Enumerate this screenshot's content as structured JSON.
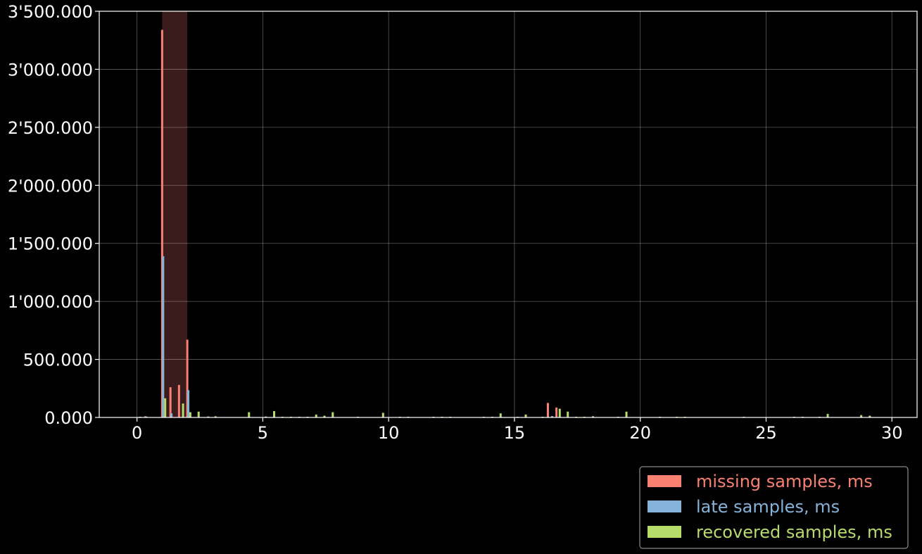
{
  "chart_data": {
    "type": "bar",
    "title": "",
    "xlabel": "",
    "ylabel": "",
    "xlim": [
      -1.5,
      31
    ],
    "ylim": [
      0,
      3500
    ],
    "x_ticks": [
      0,
      5,
      10,
      15,
      20,
      25,
      30
    ],
    "x_tick_labels": [
      "0",
      "5",
      "10",
      "15",
      "20",
      "25",
      "30"
    ],
    "y_ticks": [
      0,
      500,
      1000,
      1500,
      2000,
      2500,
      3000,
      3500
    ],
    "y_tick_labels": [
      "0.000",
      "500.000",
      "1'000.000",
      "1'500.000",
      "2'000.000",
      "2'500.000",
      "3'000.000",
      "3'500.000"
    ],
    "grid": true,
    "legend_position": "bottom-right, below plot",
    "highlight_region": {
      "x_start": 1.0,
      "x_end": 2.0,
      "color": "#3a1c1c"
    },
    "series": [
      {
        "name": "missing samples, ms",
        "color": "#fa8072",
        "points": [
          {
            "x": 0.33,
            "y": 10
          },
          {
            "x": 1.0,
            "y": 3340
          },
          {
            "x": 1.33,
            "y": 260
          },
          {
            "x": 1.67,
            "y": 280
          },
          {
            "x": 2.0,
            "y": 670
          },
          {
            "x": 16.33,
            "y": 125
          },
          {
            "x": 16.67,
            "y": 85
          }
        ]
      },
      {
        "name": "late samples, ms",
        "color": "#85b3d9",
        "points": [
          {
            "x": 0.37,
            "y": 8
          },
          {
            "x": 1.04,
            "y": 1390
          },
          {
            "x": 1.37,
            "y": 35
          },
          {
            "x": 2.04,
            "y": 235
          },
          {
            "x": 16.5,
            "y": 12
          }
        ]
      },
      {
        "name": "recovered samples, ms",
        "color": "#b6dc6a",
        "points": [
          {
            "x": 0.12,
            "y": 6
          },
          {
            "x": 1.12,
            "y": 165
          },
          {
            "x": 1.83,
            "y": 120
          },
          {
            "x": 2.12,
            "y": 45
          },
          {
            "x": 2.45,
            "y": 50
          },
          {
            "x": 2.83,
            "y": 8
          },
          {
            "x": 3.12,
            "y": 10
          },
          {
            "x": 4.45,
            "y": 45
          },
          {
            "x": 5.12,
            "y": 8
          },
          {
            "x": 5.45,
            "y": 55
          },
          {
            "x": 5.78,
            "y": 6
          },
          {
            "x": 6.12,
            "y": 6
          },
          {
            "x": 6.45,
            "y": 6
          },
          {
            "x": 6.78,
            "y": 6
          },
          {
            "x": 7.12,
            "y": 25
          },
          {
            "x": 7.45,
            "y": 15
          },
          {
            "x": 7.78,
            "y": 45
          },
          {
            "x": 8.78,
            "y": 6
          },
          {
            "x": 9.78,
            "y": 40
          },
          {
            "x": 10.45,
            "y": 6
          },
          {
            "x": 10.78,
            "y": 6
          },
          {
            "x": 11.78,
            "y": 6
          },
          {
            "x": 12.12,
            "y": 6
          },
          {
            "x": 12.45,
            "y": 6
          },
          {
            "x": 13.78,
            "y": 6
          },
          {
            "x": 14.12,
            "y": 6
          },
          {
            "x": 14.45,
            "y": 35
          },
          {
            "x": 15.12,
            "y": 6
          },
          {
            "x": 15.45,
            "y": 25
          },
          {
            "x": 16.12,
            "y": 6
          },
          {
            "x": 16.8,
            "y": 75
          },
          {
            "x": 17.12,
            "y": 50
          },
          {
            "x": 17.45,
            "y": 6
          },
          {
            "x": 17.78,
            "y": 6
          },
          {
            "x": 18.12,
            "y": 10
          },
          {
            "x": 19.12,
            "y": 6
          },
          {
            "x": 19.45,
            "y": 50
          },
          {
            "x": 20.78,
            "y": 6
          },
          {
            "x": 21.45,
            "y": 6
          },
          {
            "x": 21.78,
            "y": 6
          },
          {
            "x": 24.12,
            "y": 6
          },
          {
            "x": 26.12,
            "y": 6
          },
          {
            "x": 26.45,
            "y": 6
          },
          {
            "x": 27.12,
            "y": 6
          },
          {
            "x": 27.45,
            "y": 30
          },
          {
            "x": 28.78,
            "y": 20
          },
          {
            "x": 29.12,
            "y": 15
          }
        ]
      }
    ]
  }
}
